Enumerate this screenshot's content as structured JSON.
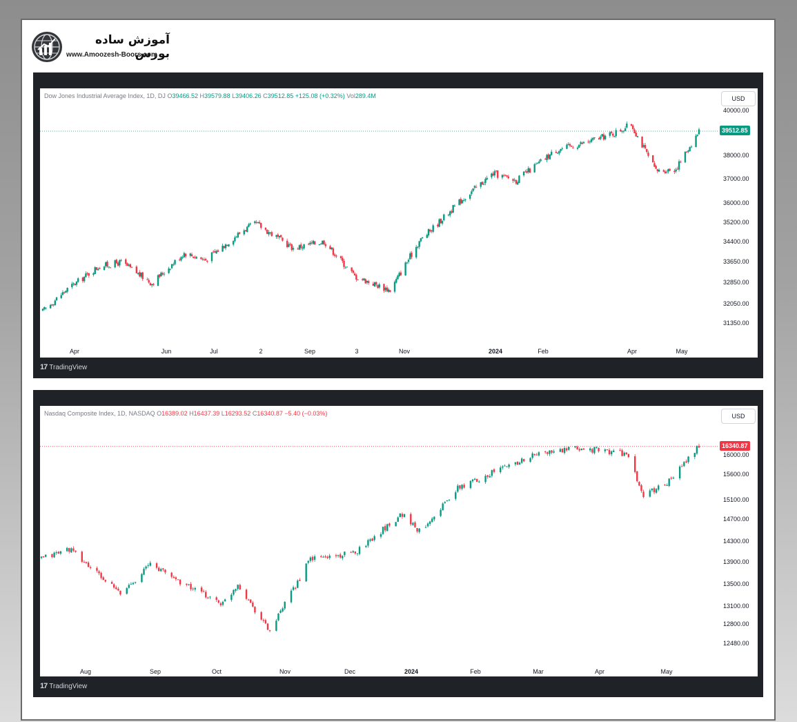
{
  "logo": {
    "title": "آموزش ساده بورس",
    "url": "www.Amoozesh-Boors.com"
  },
  "colors": {
    "up": "#089981",
    "down": "#f23645",
    "panel": "#1f2227"
  },
  "charts": [
    {
      "legend": {
        "name": "Dow Jones Industrial Average Index, 1D, DJ",
        "o_label": "O",
        "o": "39466.52",
        "h_label": "H",
        "h": "39579.88",
        "l_label": "L",
        "l": "39406.26",
        "c_label": "C",
        "c": "39512.85",
        "change": "+125.08 (+0.32%)",
        "vol_label": "Vol",
        "vol": "289.4M"
      },
      "currency": "USD",
      "last_price": "39512.85",
      "y_ticks": [
        "40000.00",
        "39000.00",
        "38000.00",
        "37000.00",
        "36000.00",
        "35200.00",
        "34400.00",
        "33650.00",
        "32850.00",
        "32050.00",
        "31350.00"
      ],
      "x_ticks": [
        "Apr",
        "Jun",
        "Jul",
        "2",
        "Sep",
        "3",
        "Nov",
        "2024",
        "Feb",
        "Apr",
        "May"
      ],
      "brand": "TradingView"
    },
    {
      "legend": {
        "name": "Nasdaq Composite Index, 1D, NASDAQ",
        "o_label": "O",
        "o": "16389.02",
        "h_label": "H",
        "h": "16437.39",
        "l_label": "L",
        "l": "16293.52",
        "c_label": "C",
        "c": "16340.87",
        "change": "−5.40 (−0.03%)"
      },
      "currency": "USD",
      "last_price": "16340.87",
      "y_ticks": [
        "16000.00",
        "15600.00",
        "15100.00",
        "14700.00",
        "14300.00",
        "13900.00",
        "13500.00",
        "13100.00",
        "12800.00",
        "12480.00"
      ],
      "x_ticks": [
        "Aug",
        "Sep",
        "Oct",
        "Nov",
        "Dec",
        "2024",
        "Feb",
        "Mar",
        "Apr",
        "May"
      ],
      "brand": "TradingView"
    }
  ],
  "chart_data": [
    {
      "type": "candlestick",
      "title": "Dow Jones Industrial Average Index, 1D, DJ",
      "currency": "USD",
      "ylim": [
        31000,
        40400
      ],
      "x_range": [
        "2023-03-15",
        "2024-05-15"
      ],
      "last": 39512.85,
      "trend": [
        {
          "x": "2023-03-15",
          "y": 31800
        },
        {
          "x": "2023-03-30",
          "y": 32700
        },
        {
          "x": "2023-04-20",
          "y": 33700
        },
        {
          "x": "2023-05-05",
          "y": 33900
        },
        {
          "x": "2023-05-25",
          "y": 33000
        },
        {
          "x": "2023-06-15",
          "y": 34300
        },
        {
          "x": "2023-06-29",
          "y": 34000
        },
        {
          "x": "2023-07-24",
          "y": 35300
        },
        {
          "x": "2023-08-01",
          "y": 35550
        },
        {
          "x": "2023-08-25",
          "y": 34500
        },
        {
          "x": "2023-09-14",
          "y": 34800
        },
        {
          "x": "2023-10-04",
          "y": 33300
        },
        {
          "x": "2023-10-27",
          "y": 32700
        },
        {
          "x": "2023-11-15",
          "y": 34800
        },
        {
          "x": "2023-12-13",
          "y": 36600
        },
        {
          "x": "2024-01-02",
          "y": 37700
        },
        {
          "x": "2024-01-17",
          "y": 37400
        },
        {
          "x": "2024-02-12",
          "y": 38700
        },
        {
          "x": "2024-03-01",
          "y": 39000
        },
        {
          "x": "2024-03-20",
          "y": 39400
        },
        {
          "x": "2024-04-01",
          "y": 39800
        },
        {
          "x": "2024-04-17",
          "y": 37800
        },
        {
          "x": "2024-04-30",
          "y": 37900
        },
        {
          "x": "2024-05-15",
          "y": 39512.85
        }
      ]
    },
    {
      "type": "candlestick",
      "title": "Nasdaq Composite Index, 1D, NASDAQ",
      "currency": "USD",
      "ylim": [
        12400,
        16600
      ],
      "x_range": [
        "2023-07-12",
        "2024-05-15"
      ],
      "last": 16340.87,
      "trend": [
        {
          "x": "2023-07-12",
          "y": 14100
        },
        {
          "x": "2023-07-25",
          "y": 14300
        },
        {
          "x": "2023-08-18",
          "y": 13400
        },
        {
          "x": "2023-09-01",
          "y": 14000
        },
        {
          "x": "2023-09-21",
          "y": 13500
        },
        {
          "x": "2023-10-05",
          "y": 13200
        },
        {
          "x": "2023-10-12",
          "y": 13600
        },
        {
          "x": "2023-10-27",
          "y": 12650
        },
        {
          "x": "2023-11-15",
          "y": 14100
        },
        {
          "x": "2023-12-05",
          "y": 14200
        },
        {
          "x": "2023-12-28",
          "y": 15000
        },
        {
          "x": "2024-01-05",
          "y": 14650
        },
        {
          "x": "2024-01-23",
          "y": 15500
        },
        {
          "x": "2024-02-12",
          "y": 15900
        },
        {
          "x": "2024-03-01",
          "y": 16200
        },
        {
          "x": "2024-03-21",
          "y": 16300
        },
        {
          "x": "2024-04-11",
          "y": 16200
        },
        {
          "x": "2024-04-19",
          "y": 15350
        },
        {
          "x": "2024-05-01",
          "y": 15650
        },
        {
          "x": "2024-05-15",
          "y": 16340.87
        }
      ]
    }
  ]
}
